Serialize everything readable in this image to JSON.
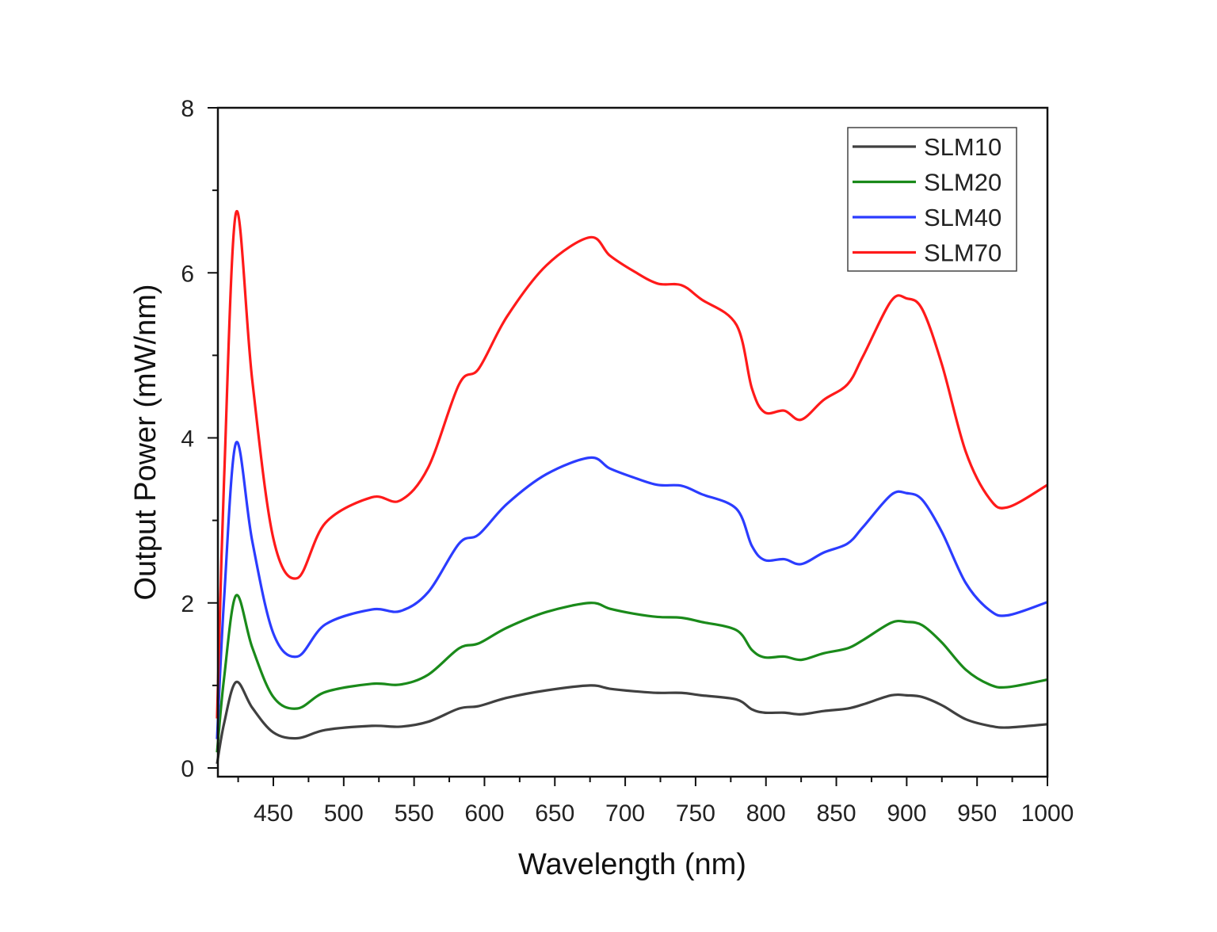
{
  "chart_data": {
    "type": "line",
    "title": "",
    "xlabel": "Wavelength (nm)",
    "ylabel": "Output Power (mW/nm)",
    "xlim": [
      410,
      1000
    ],
    "ylim": [
      -0.1,
      8
    ],
    "xticks": [
      450,
      500,
      550,
      600,
      650,
      700,
      750,
      800,
      850,
      900,
      950,
      1000
    ],
    "yticks": [
      0,
      2,
      4,
      6,
      8
    ],
    "grid": false,
    "legend_position": "top-right",
    "x": [
      410,
      415,
      423.5,
      435,
      450,
      467,
      487,
      520,
      540,
      560,
      582,
      596,
      616,
      644,
      675,
      689,
      706,
      723,
      740,
      754,
      779,
      790,
      799,
      813,
      825,
      841,
      858,
      869,
      889,
      900,
      911,
      925,
      942,
      959,
      972,
      1000
    ],
    "series": [
      {
        "name": "SLM10",
        "color": "#404040",
        "values": [
          0.05,
          0.54,
          1.04,
          0.73,
          0.43,
          0.36,
          0.46,
          0.51,
          0.5,
          0.56,
          0.72,
          0.75,
          0.85,
          0.94,
          1.0,
          0.96,
          0.93,
          0.91,
          0.91,
          0.88,
          0.83,
          0.71,
          0.67,
          0.67,
          0.65,
          0.69,
          0.72,
          0.77,
          0.88,
          0.88,
          0.86,
          0.76,
          0.59,
          0.51,
          0.49,
          0.53
        ]
      },
      {
        "name": "SLM20",
        "color": "#1a8a1a",
        "values": [
          0.19,
          1.09,
          2.09,
          1.46,
          0.86,
          0.72,
          0.92,
          1.02,
          1.01,
          1.13,
          1.45,
          1.51,
          1.7,
          1.89,
          2.0,
          1.93,
          1.87,
          1.83,
          1.82,
          1.77,
          1.67,
          1.43,
          1.34,
          1.35,
          1.31,
          1.39,
          1.45,
          1.55,
          1.76,
          1.77,
          1.73,
          1.52,
          1.19,
          1.01,
          0.98,
          1.07
        ]
      },
      {
        "name": "SLM40",
        "color": "#2b3cff",
        "values": [
          0.35,
          2.05,
          3.94,
          2.75,
          1.63,
          1.35,
          1.74,
          1.92,
          1.9,
          2.13,
          2.72,
          2.83,
          3.2,
          3.56,
          3.76,
          3.63,
          3.52,
          3.43,
          3.42,
          3.32,
          3.14,
          2.69,
          2.52,
          2.53,
          2.47,
          2.61,
          2.72,
          2.92,
          3.31,
          3.33,
          3.25,
          2.86,
          2.24,
          1.91,
          1.85,
          2.01
        ]
      },
      {
        "name": "SLM70",
        "color": "#ff1a1a",
        "values": [
          0.6,
          3.5,
          6.73,
          4.7,
          2.78,
          2.3,
          2.97,
          3.28,
          3.24,
          3.64,
          4.65,
          4.84,
          5.47,
          6.09,
          6.43,
          6.21,
          6.02,
          5.87,
          5.85,
          5.68,
          5.37,
          4.6,
          4.31,
          4.33,
          4.22,
          4.46,
          4.65,
          4.99,
          5.66,
          5.69,
          5.56,
          4.89,
          3.83,
          3.26,
          3.16,
          3.43
        ]
      }
    ]
  }
}
